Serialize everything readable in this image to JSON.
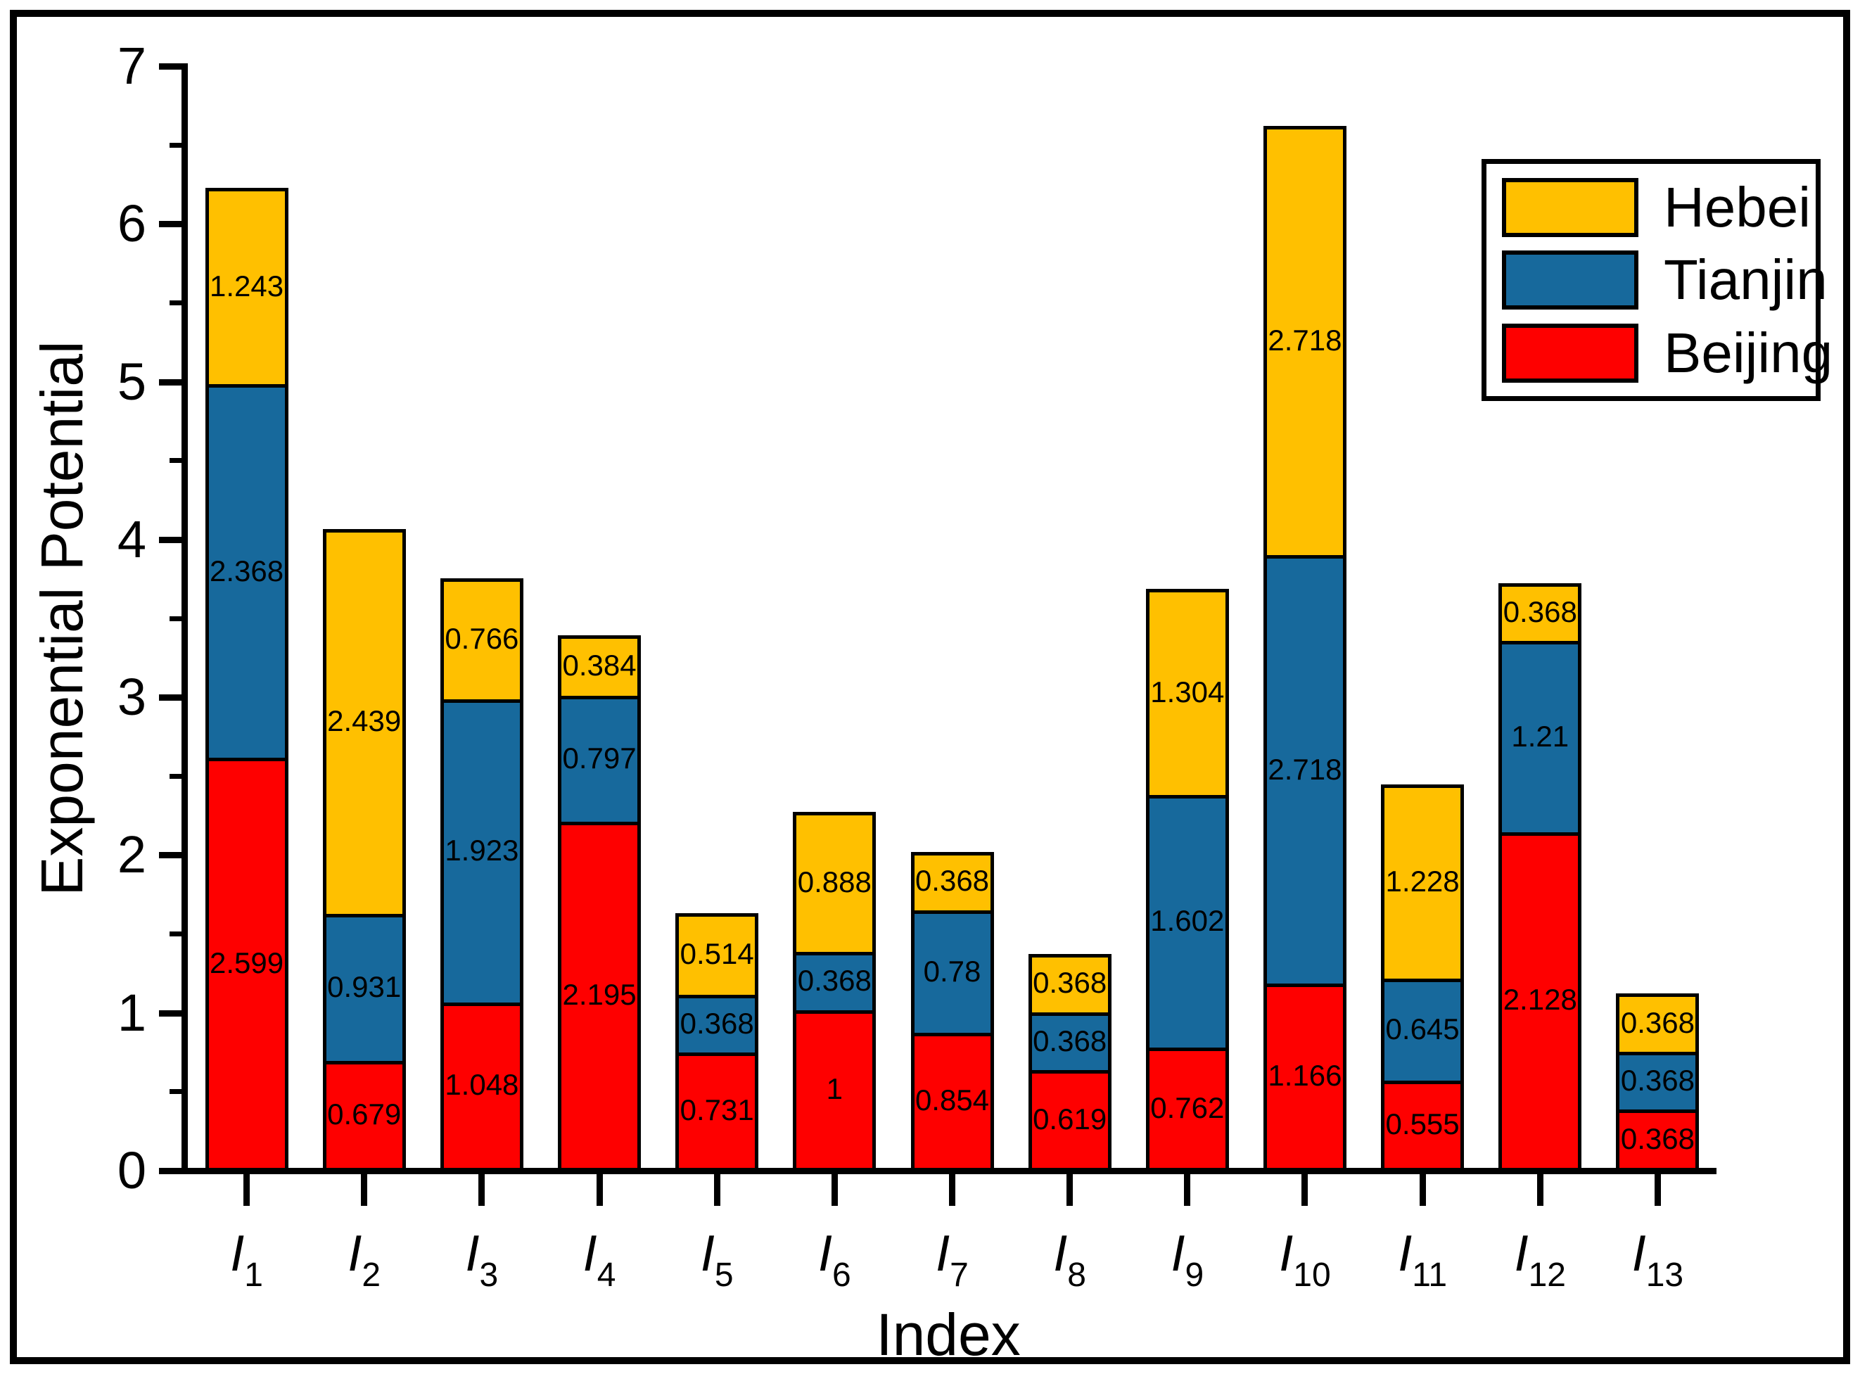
{
  "figure": {
    "background": "#FFFFFF",
    "border_color": "#000000"
  },
  "chart_data": {
    "type": "bar",
    "stacked": true,
    "title": "",
    "xlabel": "Index",
    "ylabel": "Exponential Potential",
    "ylim": [
      0,
      7
    ],
    "y_major_ticks": [
      0,
      1,
      2,
      3,
      4,
      5,
      6,
      7
    ],
    "y_minor_step": 0.5,
    "grid": false,
    "legend_position": "upper-right",
    "bar_outline_color": "#000000",
    "label_color": "#000000",
    "categories": [
      {
        "base": "I",
        "sub": "1"
      },
      {
        "base": "I",
        "sub": "2"
      },
      {
        "base": "I",
        "sub": "3"
      },
      {
        "base": "I",
        "sub": "4"
      },
      {
        "base": "I",
        "sub": "5"
      },
      {
        "base": "I",
        "sub": "6"
      },
      {
        "base": "I",
        "sub": "7"
      },
      {
        "base": "I",
        "sub": "8"
      },
      {
        "base": "I",
        "sub": "9"
      },
      {
        "base": "I",
        "sub": "10"
      },
      {
        "base": "I",
        "sub": "11"
      },
      {
        "base": "I",
        "sub": "12"
      },
      {
        "base": "I",
        "sub": "13"
      }
    ],
    "series": [
      {
        "name": "Beijing",
        "color": "#FE0000",
        "values": [
          2.599,
          0.679,
          1.048,
          2.195,
          0.731,
          1,
          0.854,
          0.619,
          0.762,
          1.166,
          0.555,
          2.128,
          0.368
        ]
      },
      {
        "name": "Tianjin",
        "color": "#17699C",
        "values": [
          2.368,
          0.931,
          1.923,
          0.797,
          0.368,
          0.368,
          0.78,
          0.368,
          1.602,
          2.718,
          0.645,
          1.21,
          0.368
        ]
      },
      {
        "name": "Hebei",
        "color": "#FFC000",
        "values": [
          1.243,
          2.439,
          0.766,
          0.384,
          0.514,
          0.888,
          0.368,
          0.368,
          1.304,
          2.718,
          1.228,
          0.368,
          0.368
        ]
      }
    ],
    "legend": [
      "Hebei",
      "Tianjin",
      "Beijing"
    ]
  }
}
